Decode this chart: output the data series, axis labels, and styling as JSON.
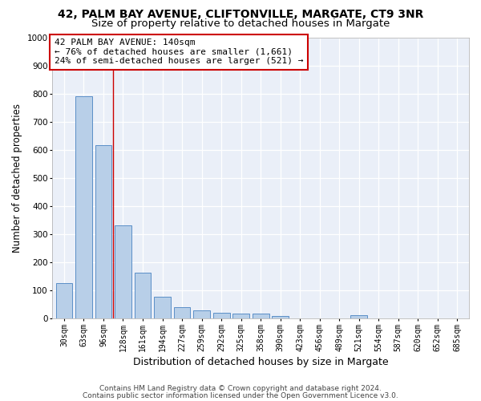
{
  "title1": "42, PALM BAY AVENUE, CLIFTONVILLE, MARGATE, CT9 3NR",
  "title2": "Size of property relative to detached houses in Margate",
  "xlabel": "Distribution of detached houses by size in Margate",
  "ylabel": "Number of detached properties",
  "footer1": "Contains HM Land Registry data © Crown copyright and database right 2024.",
  "footer2": "Contains public sector information licensed under the Open Government Licence v3.0.",
  "categories": [
    "30sqm",
    "63sqm",
    "96sqm",
    "128sqm",
    "161sqm",
    "194sqm",
    "227sqm",
    "259sqm",
    "292sqm",
    "325sqm",
    "358sqm",
    "390sqm",
    "423sqm",
    "456sqm",
    "489sqm",
    "521sqm",
    "554sqm",
    "587sqm",
    "620sqm",
    "652sqm",
    "685sqm"
  ],
  "values": [
    125,
    790,
    615,
    330,
    162,
    77,
    40,
    27,
    20,
    16,
    16,
    8,
    0,
    0,
    0,
    10,
    0,
    0,
    0,
    0,
    0
  ],
  "bar_color": "#b8cfe8",
  "bar_edge_color": "#5b8fc7",
  "red_line_x": 2.5,
  "annotation_text1": "42 PALM BAY AVENUE: 140sqm",
  "annotation_text2": "← 76% of detached houses are smaller (1,661)",
  "annotation_text3": "24% of semi-detached houses are larger (521) →",
  "annotation_box_color": "#ffffff",
  "annotation_box_edge_color": "#cc0000",
  "ylim": [
    0,
    1000
  ],
  "yticks": [
    0,
    100,
    200,
    300,
    400,
    500,
    600,
    700,
    800,
    900,
    1000
  ],
  "bg_color": "#eaeff8",
  "grid_color": "#ffffff",
  "title_fontsize": 10,
  "subtitle_fontsize": 9.5,
  "xlabel_fontsize": 9,
  "ylabel_fontsize": 8.5,
  "tick_fontsize": 7,
  "annotation_fontsize": 8,
  "footer_fontsize": 6.5
}
